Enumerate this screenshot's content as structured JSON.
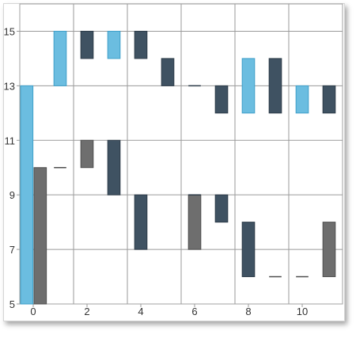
{
  "chart_data": {
    "type": "bar",
    "subtype": "floating-range",
    "title": "",
    "xlabel": "",
    "ylabel": "",
    "xlim": [
      -0.5,
      11.5
    ],
    "ylim": [
      5,
      16
    ],
    "x_ticks": [
      0,
      2,
      4,
      6,
      8,
      10
    ],
    "y_ticks": [
      5,
      7,
      9,
      11,
      13,
      15
    ],
    "grid": true,
    "colors": {
      "blue": "#6bbde0",
      "dark": "#3f5262",
      "gray": "#6e6e6e"
    },
    "series": [
      {
        "color": "blue",
        "points": [
          {
            "x": 0,
            "low": 5,
            "high": 13
          },
          {
            "x": 1,
            "low": 13,
            "high": 15
          },
          {
            "x": 3,
            "low": 14,
            "high": 15
          },
          {
            "x": 8,
            "low": 12,
            "high": 14
          },
          {
            "x": 10,
            "low": 12,
            "high": 13
          }
        ]
      },
      {
        "color": "dark",
        "points": [
          {
            "x": 2,
            "low": 14,
            "high": 15
          },
          {
            "x": 4,
            "low": 14,
            "high": 15
          },
          {
            "x": 5,
            "low": 13,
            "high": 14
          },
          {
            "x": 6,
            "low": 13,
            "high": 13
          },
          {
            "x": 7,
            "low": 12,
            "high": 13
          },
          {
            "x": 9,
            "low": 12,
            "high": 14
          },
          {
            "x": 11,
            "low": 12,
            "high": 13
          }
        ]
      },
      {
        "color": "gray",
        "points": [
          {
            "x": 0,
            "low": 5,
            "high": 10
          },
          {
            "x": 1,
            "low": 10,
            "high": 10
          },
          {
            "x": 2,
            "low": 10,
            "high": 11
          },
          {
            "x": 6,
            "low": 7,
            "high": 9
          },
          {
            "x": 9,
            "low": 6,
            "high": 6
          },
          {
            "x": 10,
            "low": 6,
            "high": 6
          },
          {
            "x": 11,
            "low": 6,
            "high": 8
          }
        ]
      },
      {
        "color": "dark",
        "points": [
          {
            "x": 3,
            "low": 9,
            "high": 11
          },
          {
            "x": 4,
            "low": 7,
            "high": 9
          },
          {
            "x": 6,
            "low": 9,
            "high": 9
          },
          {
            "x": 7,
            "low": 8,
            "high": 9
          },
          {
            "x": 8,
            "low": 6,
            "high": 8
          }
        ]
      }
    ]
  }
}
